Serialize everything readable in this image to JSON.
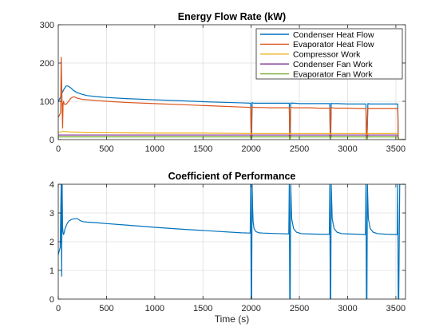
{
  "colors": {
    "background": "#ffffff",
    "axis": "#262626",
    "grid": "#dfdfdf",
    "condenser_heat": "#0072BD",
    "evaporator_heat": "#D95319",
    "compressor_work": "#EDB120",
    "condenser_fan": "#7E2F8E",
    "evaporator_fan": "#77AC30"
  },
  "chart_data": [
    {
      "type": "line",
      "title": "Energy Flow Rate (kW)",
      "xlabel": "",
      "ylabel": "",
      "xlim": [
        0,
        3600
      ],
      "ylim": [
        0,
        300
      ],
      "xticks": [
        0,
        500,
        1000,
        1500,
        2000,
        2500,
        3000,
        3500
      ],
      "yticks": [
        0,
        100,
        200,
        300
      ],
      "grid": true,
      "legend_position": "top-right",
      "series": [
        {
          "name": "Condenser Heat Flow",
          "color": "#0072BD",
          "x": [
            0,
            10,
            25,
            40,
            60,
            80,
            100,
            130,
            160,
            200,
            250,
            300,
            400,
            500,
            700,
            1000,
            1300,
            1600,
            1900,
            1995,
            2000,
            2005,
            2010,
            2015,
            2030,
            2100,
            2200,
            2300,
            2395,
            2400,
            2405,
            2410,
            2420,
            2450,
            2500,
            2600,
            2700,
            2815,
            2820,
            2825,
            2830,
            2840,
            2870,
            2900,
            3000,
            3100,
            3190,
            3195,
            3200,
            3210,
            3230,
            3260,
            3300,
            3400,
            3520,
            3525,
            3530,
            3540,
            3560,
            3590,
            3600
          ],
          "y": [
            98,
            105,
            112,
            122,
            132,
            140,
            140,
            135,
            128,
            122,
            118,
            115,
            112,
            110,
            107,
            104,
            101,
            98,
            96,
            95,
            0,
            0,
            97,
            96,
            95,
            95,
            95,
            95,
            95,
            0,
            0,
            96,
            95,
            95,
            94,
            94,
            94,
            94,
            0,
            0,
            95,
            94,
            94,
            94,
            93,
            93,
            93,
            0,
            0,
            94,
            93,
            93,
            93,
            93,
            93,
            0,
            0,
            0,
            0,
            0,
            0
          ]
        },
        {
          "name": "Evaporator Heat Flow",
          "color": "#D95319",
          "x": [
            0,
            25,
            30,
            40,
            45,
            50,
            55,
            60,
            80,
            100,
            130,
            160,
            200,
            250,
            300,
            400,
            500,
            700,
            1000,
            1300,
            1600,
            1900,
            1995,
            2000,
            2010,
            2015,
            2030,
            2100,
            2200,
            2300,
            2395,
            2400,
            2410,
            2420,
            2450,
            2500,
            2600,
            2700,
            2815,
            2820,
            2830,
            2840,
            2870,
            2900,
            3000,
            3100,
            3190,
            3195,
            3200,
            3210,
            3230,
            3260,
            3300,
            3400,
            3520,
            3525,
            3560,
            3590,
            3600
          ],
          "y": [
            58,
            70,
            215,
            90,
            30,
            95,
            100,
            93,
            92,
            98,
            108,
            112,
            108,
            105,
            104,
            102,
            100,
            97,
            94,
            91,
            88,
            85,
            84,
            0,
            86,
            85,
            84,
            84,
            83,
            83,
            83,
            0,
            84,
            84,
            83,
            83,
            83,
            82,
            82,
            0,
            83,
            83,
            82,
            82,
            82,
            81,
            81,
            0,
            0,
            82,
            81,
            81,
            81,
            81,
            81,
            0,
            0,
            0,
            0
          ]
        },
        {
          "name": "Compressor Work",
          "color": "#EDB120",
          "x": [
            0,
            50,
            100,
            200,
            300,
            500,
            1000,
            1500,
            1995,
            2000,
            2010,
            2395,
            2400,
            2410,
            2815,
            2820,
            2830,
            3190,
            3200,
            3210,
            3520,
            3530,
            3600
          ],
          "y": [
            18,
            22,
            20,
            19,
            18,
            18,
            17,
            17,
            16,
            0,
            16,
            16,
            0,
            16,
            16,
            0,
            16,
            16,
            0,
            16,
            16,
            0,
            0
          ]
        },
        {
          "name": "Condenser Fan Work",
          "color": "#7E2F8E",
          "x": [
            0,
            1995,
            2000,
            2010,
            2395,
            2400,
            2410,
            2815,
            2820,
            2830,
            3190,
            3200,
            3210,
            3520,
            3530,
            3600
          ],
          "y": [
            12,
            12,
            0,
            12,
            12,
            0,
            12,
            12,
            0,
            12,
            12,
            0,
            12,
            12,
            0,
            0
          ]
        },
        {
          "name": "Evaporator Fan Work",
          "color": "#77AC30",
          "x": [
            0,
            1995,
            2000,
            2010,
            2395,
            2400,
            2410,
            2815,
            2820,
            2830,
            3190,
            3200,
            3210,
            3520,
            3530,
            3600
          ],
          "y": [
            7,
            7,
            0,
            7,
            7,
            0,
            7,
            7,
            0,
            7,
            7,
            0,
            7,
            7,
            0,
            0
          ]
        }
      ]
    },
    {
      "type": "line",
      "title": "Coefficient of Performance",
      "xlabel": "Time (s)",
      "ylabel": "",
      "xlim": [
        0,
        3600
      ],
      "ylim": [
        0,
        4
      ],
      "xticks": [
        0,
        500,
        1000,
        1500,
        2000,
        2500,
        3000,
        3500
      ],
      "yticks": [
        0,
        1,
        2,
        3,
        4
      ],
      "grid": true,
      "series": [
        {
          "name": "",
          "color": "#0072BD",
          "x": [
            0,
            20,
            30,
            35,
            40,
            45,
            50,
            55,
            60,
            70,
            90,
            110,
            140,
            170,
            200,
            220,
            250,
            300,
            400,
            500,
            700,
            1000,
            1300,
            1600,
            1900,
            1990,
            1995,
            2000,
            2005,
            2010,
            2015,
            2020,
            2030,
            2050,
            2080,
            2120,
            2200,
            2300,
            2390,
            2395,
            2400,
            2405,
            2410,
            2420,
            2440,
            2470,
            2520,
            2600,
            2700,
            2810,
            2815,
            2820,
            2825,
            2830,
            2840,
            2860,
            2890,
            2940,
            3000,
            3100,
            3185,
            3190,
            3195,
            3200,
            3205,
            3215,
            3235,
            3265,
            3310,
            3400,
            3515,
            3520,
            3525,
            3530,
            3540,
            3570,
            3600
          ],
          "y": [
            1.55,
            1.8,
            4,
            0.8,
            4,
            2.5,
            2.3,
            2.25,
            2.3,
            2.45,
            2.62,
            2.72,
            2.78,
            2.8,
            2.8,
            2.75,
            2.7,
            2.68,
            2.66,
            2.63,
            2.58,
            2.5,
            2.43,
            2.37,
            2.31,
            2.3,
            4,
            0,
            0,
            4,
            3.2,
            2.7,
            2.45,
            2.35,
            2.31,
            2.3,
            2.29,
            2.28,
            2.27,
            4,
            0,
            0,
            4,
            2.8,
            2.45,
            2.33,
            2.28,
            2.27,
            2.26,
            2.26,
            4,
            0,
            0,
            4,
            2.8,
            2.45,
            2.33,
            2.28,
            2.27,
            2.26,
            2.25,
            4,
            0,
            0,
            4,
            2.8,
            2.45,
            2.33,
            2.28,
            2.26,
            2.25,
            4,
            0,
            0,
            4,
            4,
            4
          ]
        }
      ]
    }
  ]
}
